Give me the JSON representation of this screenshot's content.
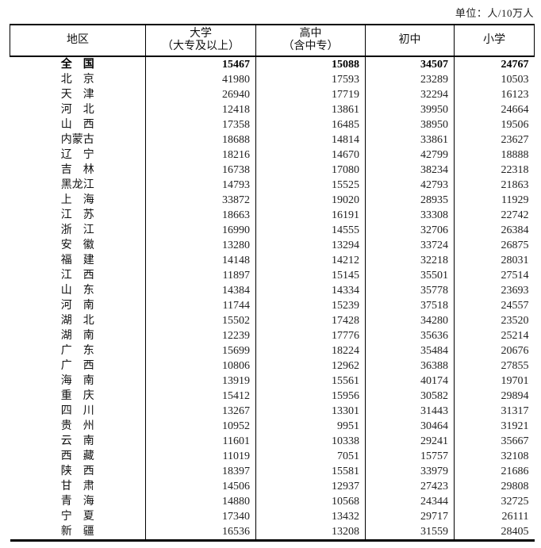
{
  "unit_label": "单位：人/10万人",
  "table": {
    "columns": [
      {
        "label": "地区",
        "sub": ""
      },
      {
        "label": "大学",
        "sub": "（大专及以上）"
      },
      {
        "label": "高中",
        "sub": "（含中专）"
      },
      {
        "label": "初中",
        "sub": ""
      },
      {
        "label": "小学",
        "sub": ""
      }
    ],
    "rows": [
      {
        "region": "全　国",
        "bold": true,
        "values": [
          15467,
          15088,
          34507,
          24767
        ]
      },
      {
        "region": "北　京",
        "bold": false,
        "values": [
          41980,
          17593,
          23289,
          10503
        ]
      },
      {
        "region": "天　津",
        "bold": false,
        "values": [
          26940,
          17719,
          32294,
          16123
        ]
      },
      {
        "region": "河　北",
        "bold": false,
        "values": [
          12418,
          13861,
          39950,
          24664
        ]
      },
      {
        "region": "山　西",
        "bold": false,
        "values": [
          17358,
          16485,
          38950,
          19506
        ]
      },
      {
        "region": "内蒙古",
        "bold": false,
        "values": [
          18688,
          14814,
          33861,
          23627
        ]
      },
      {
        "region": "辽　宁",
        "bold": false,
        "values": [
          18216,
          14670,
          42799,
          18888
        ]
      },
      {
        "region": "吉　林",
        "bold": false,
        "values": [
          16738,
          17080,
          38234,
          22318
        ]
      },
      {
        "region": "黑龙江",
        "bold": false,
        "values": [
          14793,
          15525,
          42793,
          21863
        ]
      },
      {
        "region": "上　海",
        "bold": false,
        "values": [
          33872,
          19020,
          28935,
          11929
        ]
      },
      {
        "region": "江　苏",
        "bold": false,
        "values": [
          18663,
          16191,
          33308,
          22742
        ]
      },
      {
        "region": "浙　江",
        "bold": false,
        "values": [
          16990,
          14555,
          32706,
          26384
        ]
      },
      {
        "region": "安　徽",
        "bold": false,
        "values": [
          13280,
          13294,
          33724,
          26875
        ]
      },
      {
        "region": "福　建",
        "bold": false,
        "values": [
          14148,
          14212,
          32218,
          28031
        ]
      },
      {
        "region": "江　西",
        "bold": false,
        "values": [
          11897,
          15145,
          35501,
          27514
        ]
      },
      {
        "region": "山　东",
        "bold": false,
        "values": [
          14384,
          14334,
          35778,
          23693
        ]
      },
      {
        "region": "河　南",
        "bold": false,
        "values": [
          11744,
          15239,
          37518,
          24557
        ]
      },
      {
        "region": "湖　北",
        "bold": false,
        "values": [
          15502,
          17428,
          34280,
          23520
        ]
      },
      {
        "region": "湖　南",
        "bold": false,
        "values": [
          12239,
          17776,
          35636,
          25214
        ]
      },
      {
        "region": "广　东",
        "bold": false,
        "values": [
          15699,
          18224,
          35484,
          20676
        ]
      },
      {
        "region": "广　西",
        "bold": false,
        "values": [
          10806,
          12962,
          36388,
          27855
        ]
      },
      {
        "region": "海　南",
        "bold": false,
        "values": [
          13919,
          15561,
          40174,
          19701
        ]
      },
      {
        "region": "重　庆",
        "bold": false,
        "values": [
          15412,
          15956,
          30582,
          29894
        ]
      },
      {
        "region": "四　川",
        "bold": false,
        "values": [
          13267,
          13301,
          31443,
          31317
        ]
      },
      {
        "region": "贵　州",
        "bold": false,
        "values": [
          10952,
          9951,
          30464,
          31921
        ]
      },
      {
        "region": "云　南",
        "bold": false,
        "values": [
          11601,
          10338,
          29241,
          35667
        ]
      },
      {
        "region": "西　藏",
        "bold": false,
        "values": [
          11019,
          7051,
          15757,
          32108
        ]
      },
      {
        "region": "陕　西",
        "bold": false,
        "values": [
          18397,
          15581,
          33979,
          21686
        ]
      },
      {
        "region": "甘　肃",
        "bold": false,
        "values": [
          14506,
          12937,
          27423,
          29808
        ]
      },
      {
        "region": "青　海",
        "bold": false,
        "values": [
          14880,
          10568,
          24344,
          32725
        ]
      },
      {
        "region": "宁　夏",
        "bold": false,
        "values": [
          17340,
          13432,
          29717,
          26111
        ]
      },
      {
        "region": "新　疆",
        "bold": false,
        "values": [
          16536,
          13208,
          31559,
          28405
        ]
      }
    ]
  }
}
